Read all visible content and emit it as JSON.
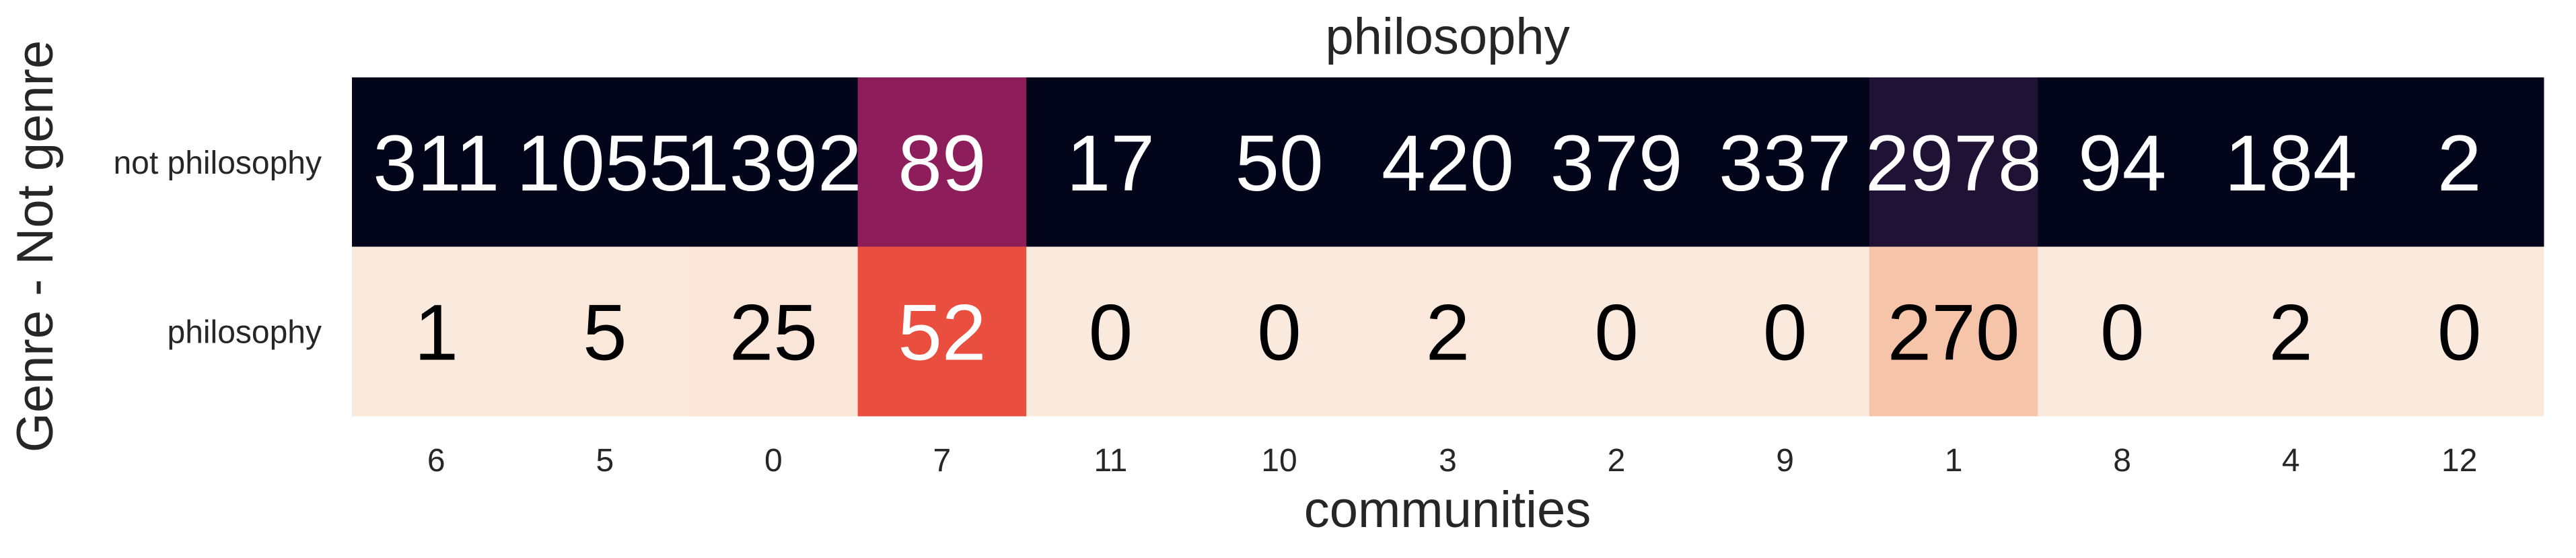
{
  "chart_data": {
    "type": "heatmap",
    "title": "philosophy",
    "xlabel": "communities",
    "ylabel": "Genre - Not genre",
    "x_categories": [
      "6",
      "5",
      "0",
      "7",
      "11",
      "10",
      "3",
      "2",
      "9",
      "1",
      "8",
      "4",
      "12"
    ],
    "y_categories": [
      "not philosophy",
      "philosophy"
    ],
    "values": [
      [
        311,
        1055,
        1392,
        89,
        17,
        50,
        420,
        379,
        337,
        2978,
        94,
        184,
        2
      ],
      [
        1,
        5,
        25,
        52,
        0,
        0,
        2,
        0,
        0,
        270,
        0,
        2,
        0
      ]
    ],
    "cell_colors": [
      [
        "#03051a",
        "#03051a",
        "#03051a",
        "#8e1d5b",
        "#03051a",
        "#03051a",
        "#03051a",
        "#03051a",
        "#03051a",
        "#1f1235",
        "#03051a",
        "#03051a",
        "#03051a"
      ],
      [
        "#fae9dd",
        "#fae8db",
        "#fae6d8",
        "#ea4e3e",
        "#fae9dd",
        "#fae9dd",
        "#fae8dc",
        "#fae9dd",
        "#fae9dd",
        "#f6c4a9",
        "#fae9dd",
        "#fae8dc",
        "#fae9dd"
      ]
    ],
    "colormap": "rocket",
    "grid": false,
    "legend": "none"
  }
}
